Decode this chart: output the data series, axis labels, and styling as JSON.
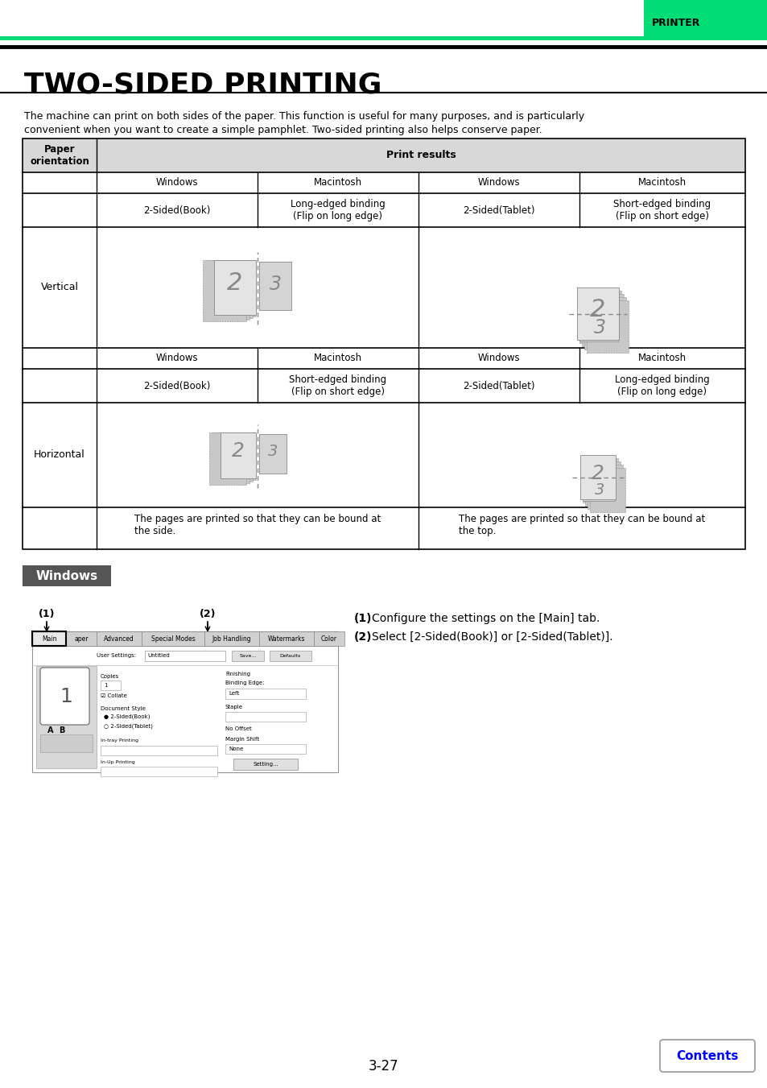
{
  "page_title": "TWO-SIDED PRINTING",
  "header_label": "PRINTER",
  "header_green": "#00dd77",
  "description_line1": "The machine can print on both sides of the paper. This function is useful for many purposes, and is particularly",
  "description_line2": "convenient when you want to create a simple pamphlet. Two-sided printing also helps conserve paper.",
  "col_print_results": "Print results",
  "vertical_label": "Vertical",
  "horizontal_label": "Horizontal",
  "row1_labels": [
    "Windows",
    "Macintosh",
    "Windows",
    "Macintosh"
  ],
  "row2_labels_v": [
    "2-Sided(Book)",
    "Long-edged binding\n(Flip on long edge)",
    "2-Sided(Tablet)",
    "Short-edged binding\n(Flip on short edge)"
  ],
  "row2_labels_h": [
    "2-Sided(Book)",
    "Short-edged binding\n(Flip on short edge)",
    "2-Sided(Tablet)",
    "Long-edged binding\n(Flip on long edge)"
  ],
  "bottom_left_text": "The pages are printed so that they can be bound at\nthe side.",
  "bottom_right_text": "The pages are printed so that they can be bound at\nthe top.",
  "windows_section": "Windows",
  "windows_bg": "#666666",
  "step1_bold": "(1)",
  "step1_rest": "   Configure the settings on the [Main] tab.",
  "step2_bold": "(2)",
  "step2_rest": "   Select [2-Sided(Book)] or [2-Sided(Tablet)].",
  "page_num": "3-27",
  "contents_label": "Contents",
  "bg_color": "#ffffff",
  "text_color": "#000000"
}
